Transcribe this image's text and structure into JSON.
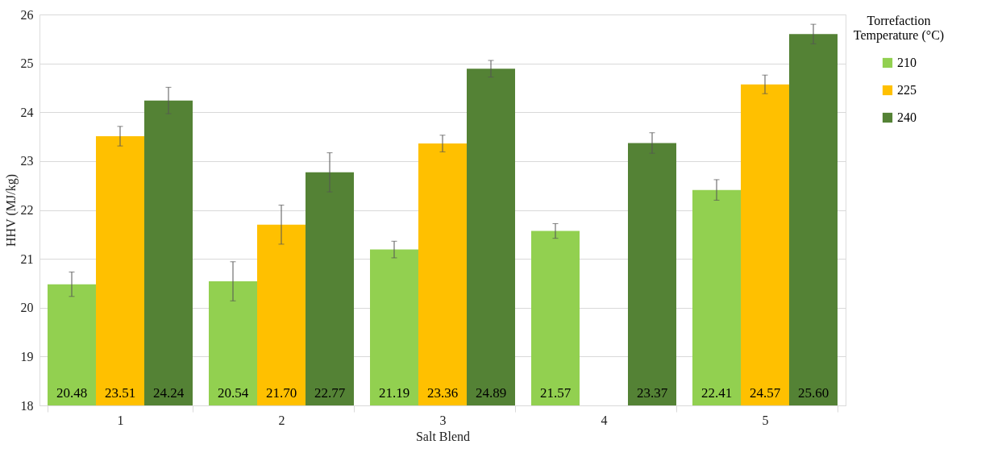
{
  "chart_data": {
    "type": "bar",
    "xlabel": "Salt Blend",
    "ylabel": "HHV (MJ/kg)",
    "legend_title": "Torrefaction Temperature (°C)",
    "legend": "right",
    "grid": "y",
    "categories": [
      "1",
      "2",
      "3",
      "4",
      "5"
    ],
    "ylim": [
      18,
      26
    ],
    "yticks": [
      18,
      19,
      20,
      21,
      22,
      23,
      24,
      25,
      26
    ],
    "series": [
      {
        "name": "210",
        "color": "#92d050",
        "values": [
          20.48,
          20.54,
          21.19,
          21.57,
          22.41
        ],
        "errors": [
          0.25,
          0.4,
          0.17,
          0.15,
          0.21
        ],
        "value_labels": [
          "20.48",
          "20.54",
          "21.19",
          "21.57",
          "22.41"
        ]
      },
      {
        "name": "225",
        "color": "#ffc000",
        "values": [
          23.51,
          21.7,
          23.36,
          null,
          24.57
        ],
        "errors": [
          0.2,
          0.4,
          0.17,
          null,
          0.19
        ],
        "value_labels": [
          "23.51",
          "21.70",
          "23.36",
          null,
          "24.57"
        ]
      },
      {
        "name": "240",
        "color": "#548235",
        "values": [
          24.24,
          22.77,
          24.89,
          23.37,
          25.6
        ],
        "errors": [
          0.27,
          0.4,
          0.17,
          0.21,
          0.2
        ],
        "value_labels": [
          "24.24",
          "22.77",
          "24.89",
          "23.37",
          "25.60"
        ]
      }
    ]
  }
}
